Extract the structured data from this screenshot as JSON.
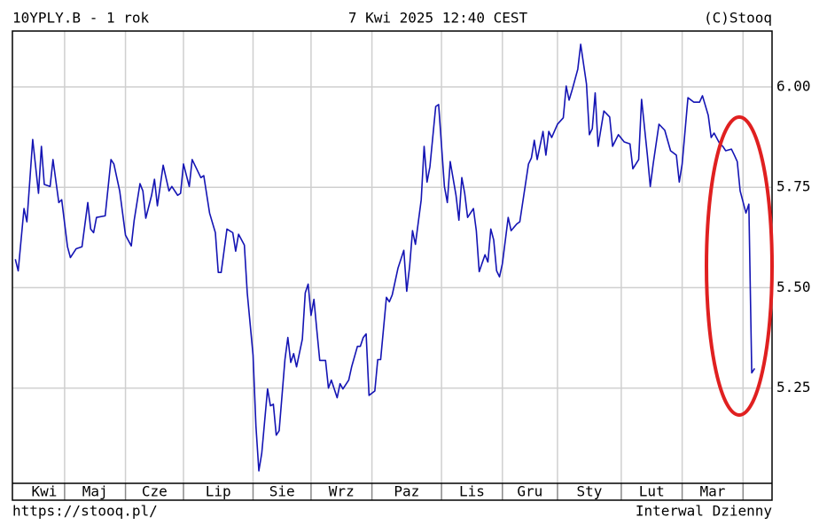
{
  "chart_data": {
    "type": "line",
    "title": "10YPLY.B - 1 rok",
    "subtitle": "7 Kwi 2025 12:40 CEST",
    "credit": "(C)Stooq",
    "source": "https://stooq.pl/",
    "interval": "Interwal Dzienny",
    "color": "#1414b4",
    "grid": true,
    "xlim": [
      0,
      262
    ],
    "ylim": [
      5.013,
      6.139
    ],
    "yticks": [
      {
        "value": 5.25,
        "label": "5.25"
      },
      {
        "value": 5.5,
        "label": "5.50"
      },
      {
        "value": 5.75,
        "label": "5.75"
      },
      {
        "value": 6.0,
        "label": "6.00"
      }
    ],
    "months": [
      "Kwi",
      "Maj",
      "Cze",
      "Lip",
      "Sie",
      "Wrz",
      "Paz",
      "Lis",
      "Gru",
      "Sty",
      "Lut",
      "Mar"
    ],
    "month_starts": [
      18,
      39,
      59,
      83,
      103,
      124,
      148,
      169,
      188,
      210,
      231,
      252
    ],
    "x": [
      1,
      2,
      4,
      5,
      7,
      9,
      10,
      11,
      13,
      14,
      16,
      17,
      19,
      20,
      22,
      24,
      26,
      27,
      28,
      29,
      32,
      34,
      35,
      37,
      39,
      41,
      42,
      44,
      45,
      46,
      48,
      49,
      50,
      52,
      54,
      55,
      57,
      58,
      59,
      61,
      62,
      65,
      66,
      68,
      70,
      71,
      72,
      74,
      76,
      77,
      78,
      80,
      81,
      83,
      84,
      85,
      86,
      88,
      89,
      90,
      91,
      92,
      94,
      95,
      96,
      97,
      98,
      100,
      101,
      102,
      103,
      104,
      105,
      106,
      108,
      109,
      110,
      112,
      113,
      114,
      116,
      117,
      119,
      120,
      121,
      122,
      123,
      125,
      126,
      127,
      129,
      130,
      131,
      133,
      135,
      136,
      137,
      138,
      139,
      141,
      142,
      143,
      144,
      146,
      147,
      149,
      150,
      151,
      153,
      154,
      155,
      156,
      157,
      159,
      160,
      161,
      163,
      164,
      165,
      166,
      167,
      168,
      169,
      171,
      172,
      174,
      175,
      178,
      179,
      180,
      181,
      183,
      184,
      185,
      186,
      188,
      190,
      191,
      192,
      193,
      195,
      196,
      198,
      199,
      200,
      201,
      202,
      204,
      206,
      207,
      209,
      211,
      213,
      214,
      216,
      217,
      219,
      220,
      221,
      223,
      225,
      227,
      229,
      230,
      231,
      233,
      235,
      237,
      238,
      240,
      241,
      242,
      244,
      245,
      246,
      248,
      249,
      250,
      251,
      253,
      254,
      255,
      256
    ],
    "values": [
      5.571,
      5.542,
      5.697,
      5.664,
      5.869,
      5.735,
      5.852,
      5.757,
      5.752,
      5.819,
      5.712,
      5.719,
      5.602,
      5.575,
      5.597,
      5.602,
      5.712,
      5.646,
      5.637,
      5.675,
      5.679,
      5.819,
      5.808,
      5.741,
      5.631,
      5.604,
      5.668,
      5.759,
      5.741,
      5.673,
      5.73,
      5.77,
      5.704,
      5.805,
      5.741,
      5.752,
      5.73,
      5.735,
      5.808,
      5.752,
      5.819,
      5.774,
      5.779,
      5.686,
      5.637,
      5.538,
      5.538,
      5.646,
      5.637,
      5.591,
      5.633,
      5.606,
      5.487,
      5.332,
      5.155,
      5.044,
      5.088,
      5.248,
      5.206,
      5.21,
      5.133,
      5.144,
      5.321,
      5.376,
      5.314,
      5.336,
      5.303,
      5.372,
      5.487,
      5.509,
      5.431,
      5.471,
      5.394,
      5.319,
      5.319,
      5.25,
      5.27,
      5.226,
      5.261,
      5.248,
      5.27,
      5.303,
      5.354,
      5.354,
      5.376,
      5.385,
      5.232,
      5.243,
      5.321,
      5.321,
      5.476,
      5.465,
      5.482,
      5.549,
      5.593,
      5.491,
      5.553,
      5.642,
      5.608,
      5.719,
      5.852,
      5.763,
      5.801,
      5.951,
      5.956,
      5.752,
      5.712,
      5.814,
      5.73,
      5.668,
      5.774,
      5.735,
      5.675,
      5.697,
      5.642,
      5.54,
      5.582,
      5.564,
      5.646,
      5.619,
      5.542,
      5.527,
      5.56,
      5.675,
      5.642,
      5.659,
      5.664,
      5.808,
      5.823,
      5.867,
      5.819,
      5.889,
      5.83,
      5.889,
      5.874,
      5.907,
      5.923,
      6.002,
      5.967,
      5.991,
      6.044,
      6.106,
      6.007,
      5.881,
      5.896,
      5.985,
      5.852,
      5.94,
      5.925,
      5.852,
      5.881,
      5.863,
      5.858,
      5.796,
      5.819,
      5.969,
      5.83,
      5.752,
      5.808,
      5.907,
      5.892,
      5.841,
      5.83,
      5.763,
      5.808,
      5.973,
      5.962,
      5.962,
      5.978,
      5.929,
      5.874,
      5.885,
      5.858,
      5.852,
      5.841,
      5.845,
      5.83,
      5.814,
      5.741,
      5.686,
      5.708,
      5.288,
      5.299
    ]
  }
}
